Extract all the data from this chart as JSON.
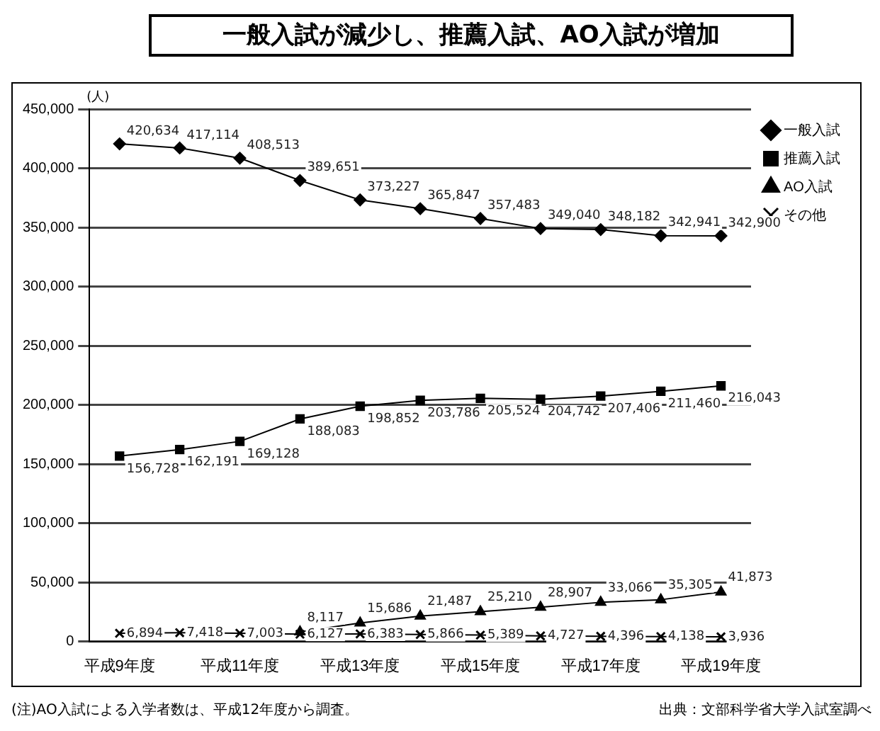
{
  "chart_data": {
    "type": "line",
    "title": "一般入試が減少し、推薦入試、AO入試が増加",
    "ylabel": "(人)",
    "categories": [
      "平成9年度",
      null,
      "平成11年度",
      null,
      "平成13年度",
      null,
      "平成15年度",
      null,
      "平成17年度",
      null,
      "平成19年度"
    ],
    "series": [
      {
        "name": "一般入試",
        "color": "#000000",
        "marker": "diamond",
        "values": [
          420634,
          417114,
          408513,
          389651,
          373227,
          365847,
          357483,
          349040,
          348182,
          342941,
          342900
        ],
        "value_labels": [
          "420,634",
          "417,114",
          "408,513",
          "389,651",
          "373,227",
          "365,847",
          "357,483",
          "349,040",
          "348,182",
          "342,941",
          "342,900"
        ]
      },
      {
        "name": "推薦入試",
        "color": "#000000",
        "marker": "square",
        "values": [
          156728,
          162191,
          169128,
          188083,
          198852,
          203786,
          205524,
          204742,
          207406,
          211460,
          216043
        ],
        "value_labels": [
          "156,728",
          "162,191",
          "169,128",
          "188,083",
          "198,852",
          "203,786",
          "205,524",
          "204,742",
          "207,406",
          "211,460",
          "216,043"
        ]
      },
      {
        "name": "AO入試",
        "color": "#000000",
        "marker": "triangle",
        "values": [
          null,
          null,
          null,
          8117,
          15686,
          21487,
          25210,
          28907,
          33066,
          35305,
          41873
        ],
        "value_labels": [
          null,
          null,
          null,
          "8,117",
          "15,686",
          "21,487",
          "25,210",
          "28,907",
          "33,066",
          "35,305",
          "41,873"
        ]
      },
      {
        "name": "その他",
        "color": "#000000",
        "marker": "cross",
        "values": [
          6894,
          7418,
          7003,
          6127,
          6383,
          5866,
          5389,
          4727,
          4396,
          4138,
          3936
        ],
        "value_labels": [
          "6,894",
          "7,418",
          "7,003",
          "6,127",
          "6,383",
          "5,866",
          "5,389",
          "4,727",
          "4,396",
          "4,138",
          "3,936"
        ]
      }
    ],
    "ylim": [
      0,
      450000
    ],
    "yticks": [
      {
        "value": 0,
        "label": "0"
      },
      {
        "value": 50000,
        "label": "50,000"
      },
      {
        "value": 100000,
        "label": "100,000"
      },
      {
        "value": 150000,
        "label": "150,000"
      },
      {
        "value": 200000,
        "label": "200,000"
      },
      {
        "value": 250000,
        "label": "250,000"
      },
      {
        "value": 300000,
        "label": "300,000"
      },
      {
        "value": 350000,
        "label": "350,000"
      },
      {
        "value": 400000,
        "label": "400,000"
      },
      {
        "value": 450000,
        "label": "450,000"
      }
    ],
    "grid": "y",
    "legend": "top right",
    "annotations": [
      "(注)AO入試による入学者数は、平成12年度から調査。",
      "出典：文部科学省大学入試室調べ"
    ]
  }
}
